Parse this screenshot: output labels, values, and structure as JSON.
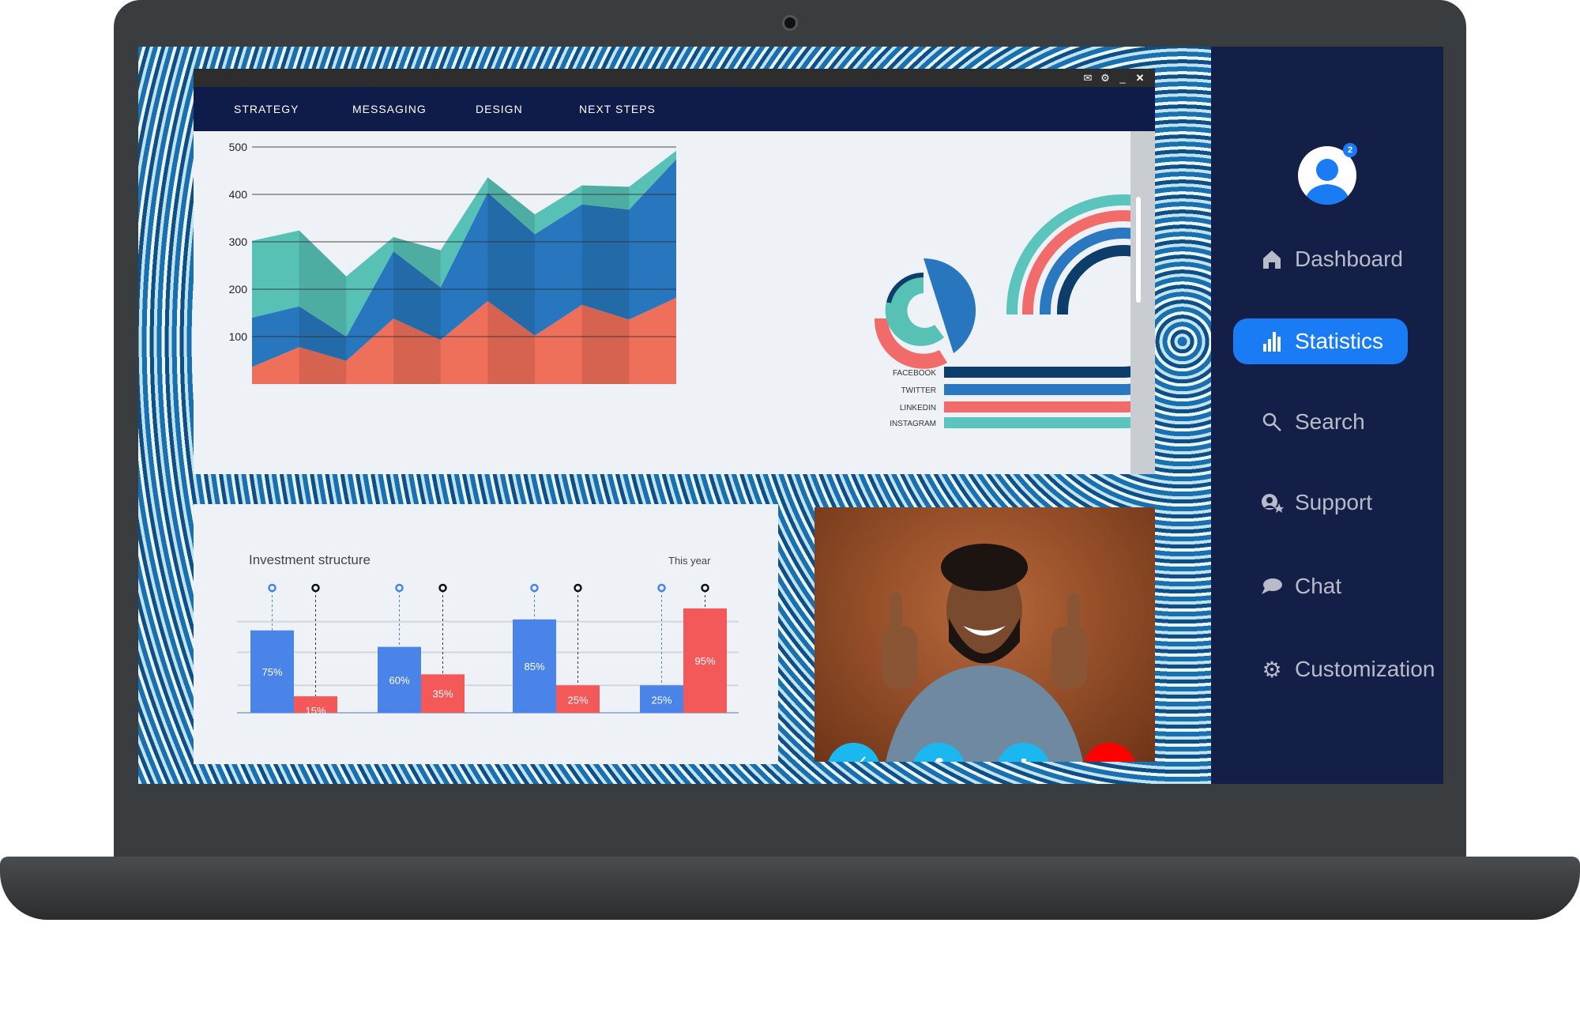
{
  "window": {
    "tabs": [
      "STRATEGY",
      "MESSAGING",
      "DESIGN",
      "NEXT STEPS"
    ],
    "controls": [
      "mail-icon",
      "gear-icon",
      "minimize-icon",
      "close-icon"
    ]
  },
  "sidebar": {
    "badge": "2",
    "items": [
      {
        "label": "Dashboard",
        "icon": "home-icon"
      },
      {
        "label": "Statistics",
        "icon": "bar-chart-icon",
        "active": true
      },
      {
        "label": "Search",
        "icon": "search-icon"
      },
      {
        "label": "Support",
        "icon": "support-icon"
      },
      {
        "label": "Chat",
        "icon": "chat-icon"
      },
      {
        "label": "Customization",
        "icon": "gear-icon"
      }
    ],
    "accent": "#1a7cf5",
    "background": "#141f48"
  },
  "chart_data": [
    {
      "type": "area",
      "stacked": true,
      "yticks": [
        100,
        200,
        300,
        400,
        500
      ],
      "ylim": [
        0,
        500
      ],
      "grid": true,
      "x": [
        1,
        2,
        3,
        4,
        5,
        6,
        7,
        8,
        9,
        10
      ],
      "series": [
        {
          "values": [
            36,
            78,
            49,
            138,
            93,
            175,
            102,
            167,
            136,
            182
          ],
          "color": "#ee6f5a"
        },
        {
          "values": [
            104,
            86,
            51,
            142,
            111,
            229,
            214,
            212,
            232,
            292
          ],
          "color": "#2876bd"
        },
        {
          "values": [
            162,
            160,
            127,
            30,
            78,
            32,
            42,
            40,
            48,
            18
          ],
          "color": "#57c1b6"
        }
      ]
    },
    {
      "type": "donut",
      "values": [
        40,
        25,
        35
      ],
      "colors": [
        "#2876bd",
        "#f26b6b",
        "#57c1b6"
      ]
    },
    {
      "type": "radial-bar",
      "legend": [
        "FACEBOOK",
        "TWITTER",
        "LINKEDIN",
        "INSTAGRAM"
      ],
      "colors": [
        "#0d3d6b",
        "#2a78c0",
        "#f26b6b",
        "#5bc4bd"
      ]
    },
    {
      "type": "bar",
      "title": "Investment structure",
      "subtitle": "This year",
      "series": [
        {
          "values": [
            75,
            60,
            85,
            25
          ],
          "labels": [
            "75%",
            "60%",
            "85%",
            "25%"
          ],
          "color": "#4a84e8"
        },
        {
          "values": [
            15,
            35,
            25,
            95
          ],
          "labels": [
            "15%",
            "35%",
            "25%",
            "95%"
          ],
          "color": "#f4595a"
        }
      ]
    }
  ],
  "video": {
    "buttons": [
      "camera-off-icon",
      "microphone-icon",
      "add-icon",
      "hang-up-icon"
    ]
  }
}
